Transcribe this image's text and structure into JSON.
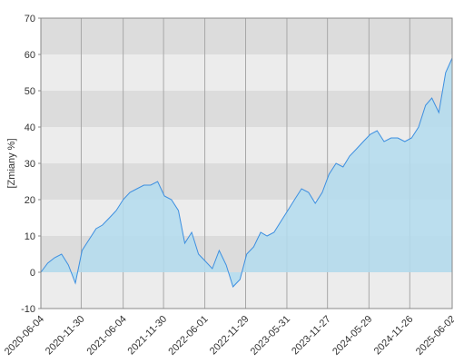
{
  "chart_data": {
    "type": "area",
    "y_label": "[Zmiany %]",
    "x": [
      "2020-06-04",
      "2020-07-04",
      "2020-08-04",
      "2020-09-04",
      "2020-10-04",
      "2020-11-04",
      "2020-12-04",
      "2021-01-04",
      "2021-02-04",
      "2021-03-04",
      "2021-04-04",
      "2021-05-04",
      "2021-06-04",
      "2021-07-04",
      "2021-08-04",
      "2021-09-04",
      "2021-10-04",
      "2021-11-04",
      "2021-12-04",
      "2022-01-04",
      "2022-02-04",
      "2022-03-04",
      "2022-04-04",
      "2022-05-04",
      "2022-06-04",
      "2022-07-04",
      "2022-08-04",
      "2022-09-04",
      "2022-10-04",
      "2022-11-04",
      "2022-12-04",
      "2023-01-04",
      "2023-02-04",
      "2023-03-04",
      "2023-04-04",
      "2023-05-04",
      "2023-06-04",
      "2023-07-04",
      "2023-08-04",
      "2023-09-04",
      "2023-10-04",
      "2023-11-04",
      "2023-12-04",
      "2024-01-04",
      "2024-02-04",
      "2024-03-04",
      "2024-04-04",
      "2024-05-04",
      "2024-06-04",
      "2024-07-04",
      "2024-08-04",
      "2024-09-04",
      "2024-10-04",
      "2024-11-04",
      "2024-12-04",
      "2025-01-04",
      "2025-02-04",
      "2025-03-04",
      "2025-04-04",
      "2025-05-04",
      "2025-06-02"
    ],
    "values": [
      0,
      2.5,
      4,
      5,
      2,
      -3,
      6,
      9,
      12,
      13,
      15,
      17,
      20,
      22,
      23,
      24,
      24,
      25,
      21,
      20,
      17,
      8,
      11,
      5,
      3,
      1,
      6,
      2,
      -4,
      -2,
      5,
      7,
      11,
      10,
      11,
      14,
      17,
      20,
      23,
      22,
      19,
      22,
      27,
      30,
      29,
      32,
      34,
      36,
      38,
      39,
      36,
      37,
      37,
      36,
      37,
      40,
      46,
      48,
      44,
      55,
      59
    ],
    "color": "#3d8fe0",
    "fill": "#b3dcef",
    "xlim": [
      "2020-06-04",
      "2025-06-02"
    ],
    "xticks": [
      "2020-06-04",
      "2020-11-30",
      "2021-06-04",
      "2021-11-30",
      "2022-06-01",
      "2022-11-29",
      "2023-05-31",
      "2023-11-27",
      "2024-05-29",
      "2024-11-26",
      "2025-06-02"
    ],
    "ylim": [
      -10,
      70
    ],
    "yticks": [
      -10,
      0,
      10,
      20,
      30,
      40,
      50,
      60,
      70
    ],
    "band_colors": [
      "#ececec",
      "#dcdcdc"
    ],
    "grid": true
  }
}
